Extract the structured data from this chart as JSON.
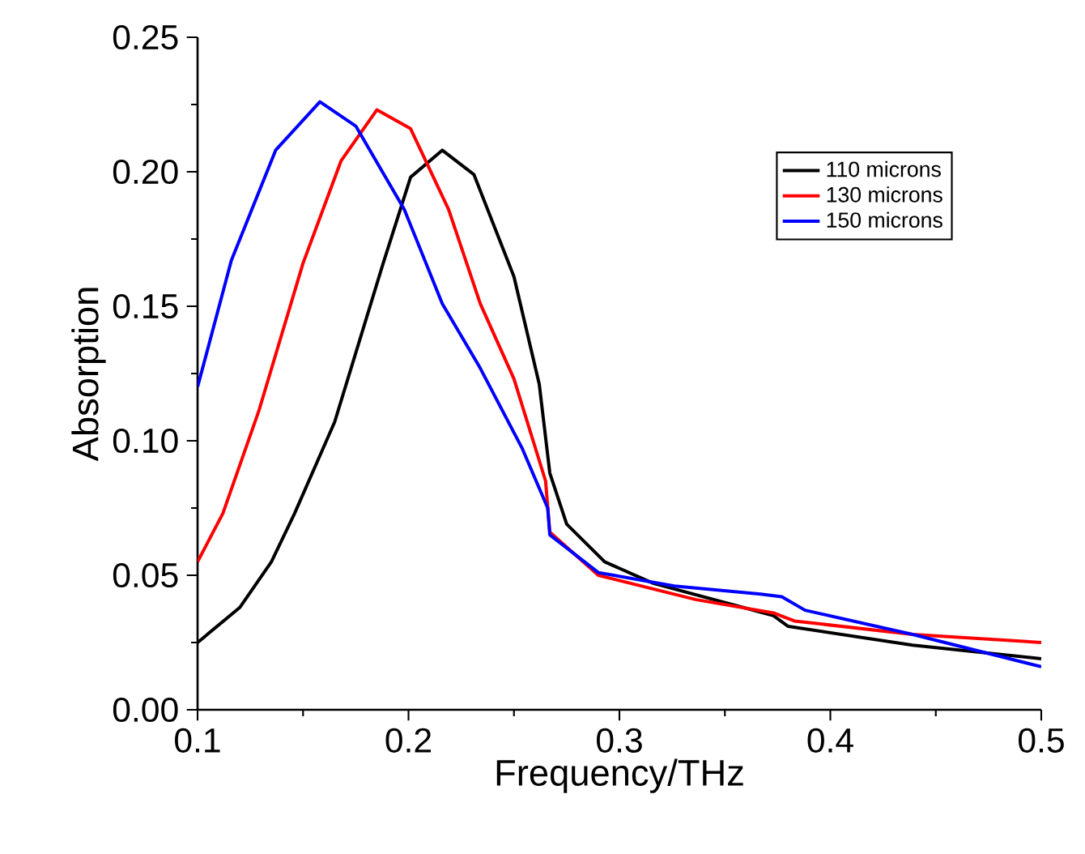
{
  "chart_data": {
    "type": "line",
    "xlabel": "Frequency/THz",
    "ylabel": "Absorption",
    "xlim": [
      0.1,
      0.5
    ],
    "ylim": [
      0,
      0.25
    ],
    "xticks": [
      {
        "value": 0.1,
        "label": "0.1"
      },
      {
        "value": 0.2,
        "label": "0.2"
      },
      {
        "value": 0.3,
        "label": "0.3"
      },
      {
        "value": 0.4,
        "label": "0.4"
      },
      {
        "value": 0.5,
        "label": "0.5"
      }
    ],
    "yticks": [
      {
        "value": 0,
        "label": "0.00"
      },
      {
        "value": 0.05,
        "label": "0.05"
      },
      {
        "value": 0.1,
        "label": "0.10"
      },
      {
        "value": 0.15,
        "label": "0.15"
      },
      {
        "value": 0.2,
        "label": "0.20"
      },
      {
        "value": 0.25,
        "label": "0.25"
      }
    ],
    "grid": false,
    "legend": "top right",
    "marker": "none",
    "line_style": "solid",
    "series": [
      {
        "name": "110 microns",
        "color": "#000000",
        "x": [
          0.1,
          0.12,
          0.135,
          0.146,
          0.165,
          0.188,
          0.201,
          0.216,
          0.231,
          0.25,
          0.262,
          0.267,
          0.275,
          0.293,
          0.316,
          0.373,
          0.38,
          0.439,
          0.5
        ],
        "values": [
          0.025,
          0.038,
          0.055,
          0.073,
          0.107,
          0.166,
          0.198,
          0.208,
          0.199,
          0.161,
          0.121,
          0.088,
          0.069,
          0.055,
          0.047,
          0.035,
          0.031,
          0.024,
          0.019
        ]
      },
      {
        "name": "130 microns",
        "color": "#ff0000",
        "x": [
          0.1,
          0.112,
          0.129,
          0.15,
          0.168,
          0.185,
          0.201,
          0.219,
          0.234,
          0.25,
          0.265,
          0.267,
          0.29,
          0.336,
          0.373,
          0.383,
          0.439,
          0.5
        ],
        "values": [
          0.055,
          0.073,
          0.111,
          0.166,
          0.204,
          0.223,
          0.216,
          0.186,
          0.151,
          0.123,
          0.085,
          0.066,
          0.05,
          0.041,
          0.036,
          0.033,
          0.028,
          0.025
        ]
      },
      {
        "name": "150 microns",
        "color": "#0000ff",
        "x": [
          0.1,
          0.116,
          0.137,
          0.158,
          0.175,
          0.198,
          0.216,
          0.234,
          0.254,
          0.266,
          0.267,
          0.29,
          0.326,
          0.367,
          0.377,
          0.388,
          0.439,
          0.5
        ],
        "values": [
          0.12,
          0.167,
          0.208,
          0.226,
          0.217,
          0.186,
          0.151,
          0.127,
          0.097,
          0.075,
          0.065,
          0.051,
          0.046,
          0.043,
          0.042,
          0.037,
          0.028,
          0.016
        ]
      }
    ]
  }
}
